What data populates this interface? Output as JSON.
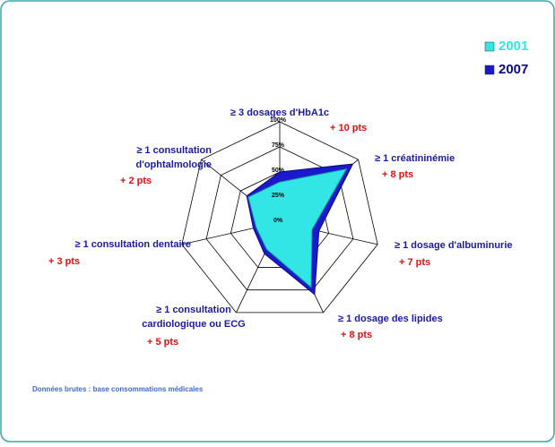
{
  "chart_data": {
    "type": "radar",
    "categories": [
      [
        "≥ 3 dosages d'HbA1c"
      ],
      [
        "≥ 1 créatininémie"
      ],
      [
        "≥ 1 dosage d'albuminurie"
      ],
      [
        "≥ 1 dosage des lipides"
      ],
      [
        "≥ 1 consultation",
        "cardiologique ou ECG"
      ],
      [
        "≥ 1 consultation dentaire"
      ],
      [
        "≥ 1 consultation",
        "d'ophtalmologie"
      ]
    ],
    "annotations": [
      "+ 10 pts",
      "+ 8 pts",
      "+ 7 pts",
      "+ 8 pts",
      "+ 5 pts",
      "+ 3 pts",
      "+ 2 pts"
    ],
    "series": [
      {
        "name": "2007",
        "color": "#1a1acc",
        "values": [
          50,
          93,
          40,
          80,
          35,
          27,
          42
        ]
      },
      {
        "name": "2001",
        "color": "#33e6e6",
        "values": [
          40,
          85,
          33,
          72,
          30,
          24,
          40
        ]
      }
    ],
    "rlim": [
      0,
      100
    ],
    "rticks": [
      {
        "value": 0,
        "label": "0%"
      },
      {
        "value": 25,
        "label": "25%"
      },
      {
        "value": 50,
        "label": "50%"
      },
      {
        "value": 75,
        "label": "75%"
      },
      {
        "value": 100,
        "label": "100%"
      }
    ],
    "grid": true,
    "legend": "top-right",
    "footnote": "Données brutes : base consommations médicales"
  }
}
